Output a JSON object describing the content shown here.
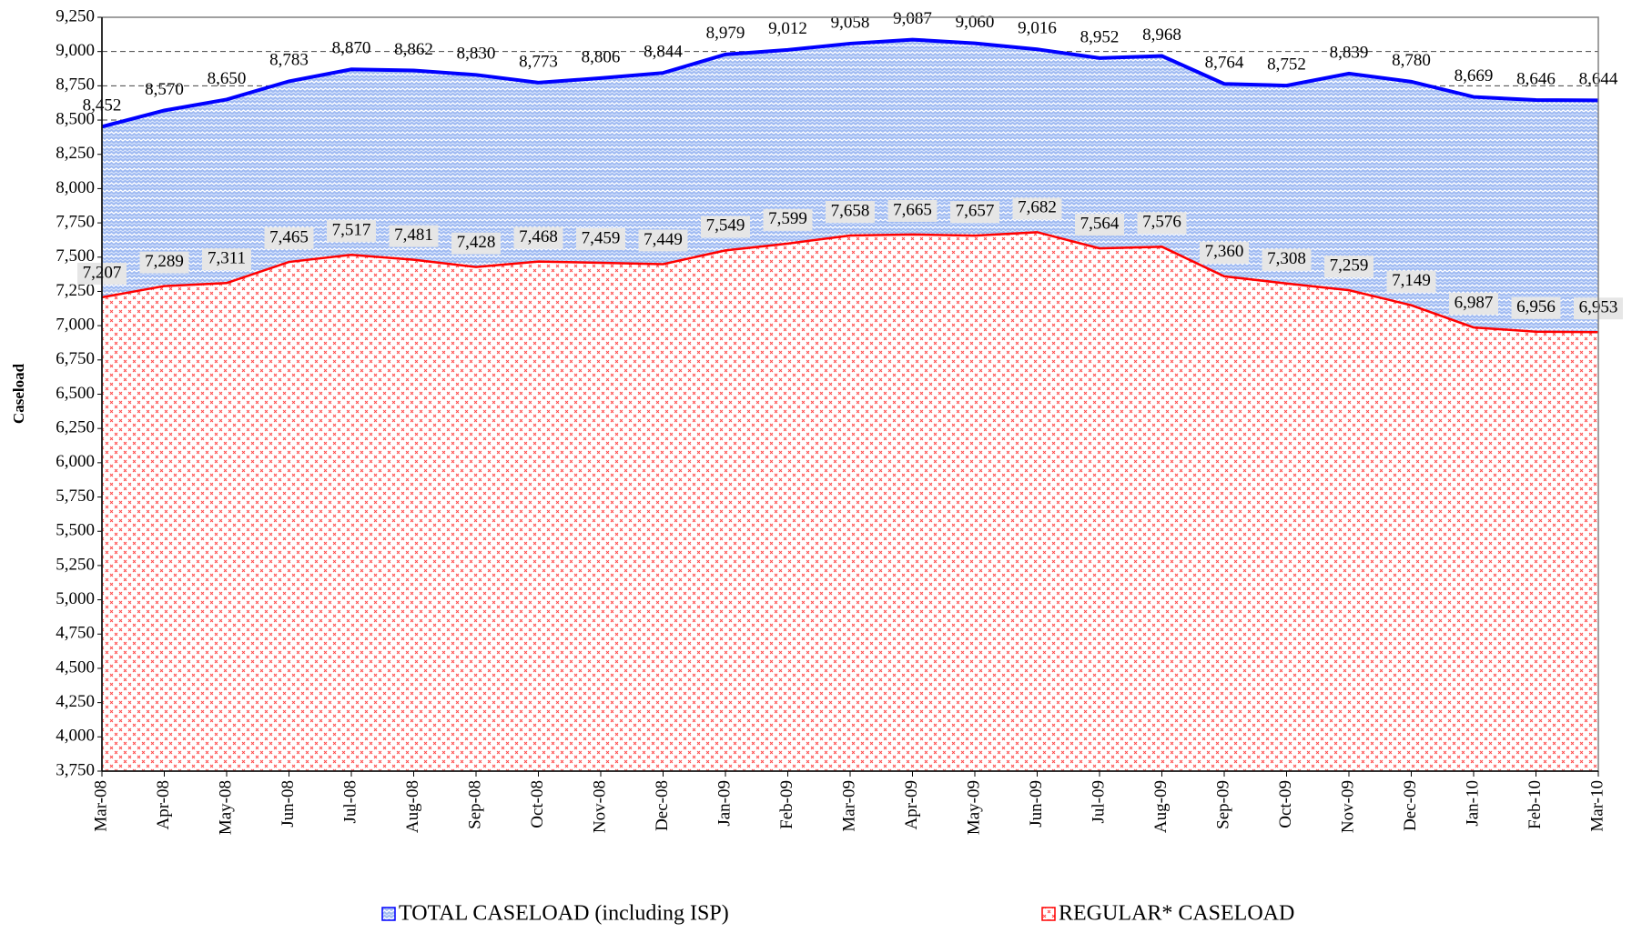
{
  "chart_data": {
    "type": "area",
    "y_label": "Caseload",
    "categories": [
      "Mar-08",
      "Apr-08",
      "May-08",
      "Jun-08",
      "Jul-08",
      "Aug-08",
      "Sep-08",
      "Oct-08",
      "Nov-08",
      "Dec-08",
      "Jan-09",
      "Feb-09",
      "Mar-09",
      "Apr-09",
      "May-09",
      "Jun-09",
      "Jul-09",
      "Aug-09",
      "Sep-09",
      "Oct-09",
      "Nov-09",
      "Dec-09",
      "Jan-10",
      "Feb-10",
      "Mar-10"
    ],
    "series": [
      {
        "name": "TOTAL CASELOAD (including ISP)",
        "color": "#0000ff",
        "values": [
          8452,
          8570,
          8650,
          8783,
          8870,
          8862,
          8830,
          8773,
          8806,
          8844,
          8979,
          9012,
          9058,
          9087,
          9060,
          9016,
          8952,
          8968,
          8764,
          8752,
          8839,
          8780,
          8669,
          8646,
          8644
        ],
        "value_labels": [
          "8,452",
          "8,570",
          "8,650",
          "8,783",
          "8,870",
          "8,862",
          "8,830",
          "8,773",
          "8,806",
          "8,844",
          "8,979",
          "9,012",
          "9,058",
          "9,087",
          "9,060",
          "9,016",
          "8,952",
          "8,968",
          "8,764",
          "8,752",
          "8,839",
          "8,780",
          "8,669",
          "8,646",
          "8,644"
        ]
      },
      {
        "name": "REGULAR* CASELOAD",
        "color": "#ff0000",
        "values": [
          7207,
          7289,
          7311,
          7465,
          7517,
          7481,
          7428,
          7468,
          7459,
          7449,
          7549,
          7599,
          7658,
          7665,
          7657,
          7682,
          7564,
          7576,
          7360,
          7308,
          7259,
          7149,
          6987,
          6956,
          6953
        ],
        "value_labels": [
          "7,207",
          "7,289",
          "7,311",
          "7,465",
          "7,517",
          "7,481",
          "7,428",
          "7,468",
          "7,459",
          "7,449",
          "7,549",
          "7,599",
          "7,658",
          "7,665",
          "7,657",
          "7,682",
          "7,564",
          "7,576",
          "7,360",
          "7,308",
          "7,259",
          "7,149",
          "6,987",
          "6,956",
          "6,953"
        ]
      }
    ],
    "ylim": [
      3750,
      9250
    ],
    "yticks": [
      {
        "value": 3750,
        "label": "3,750"
      },
      {
        "value": 4000,
        "label": "4,000"
      },
      {
        "value": 4250,
        "label": "4,250"
      },
      {
        "value": 4500,
        "label": "4,500"
      },
      {
        "value": 4750,
        "label": "4,750"
      },
      {
        "value": 5000,
        "label": "5,000"
      },
      {
        "value": 5250,
        "label": "5,250"
      },
      {
        "value": 5500,
        "label": "5,500"
      },
      {
        "value": 5750,
        "label": "5,750"
      },
      {
        "value": 6000,
        "label": "6,000"
      },
      {
        "value": 6250,
        "label": "6,250"
      },
      {
        "value": 6500,
        "label": "6,500"
      },
      {
        "value": 6750,
        "label": "6,750"
      },
      {
        "value": 7000,
        "label": "7,000"
      },
      {
        "value": 7250,
        "label": "7,250"
      },
      {
        "value": 7500,
        "label": "7,500"
      },
      {
        "value": 7750,
        "label": "7,750"
      },
      {
        "value": 8000,
        "label": "8,000"
      },
      {
        "value": 8250,
        "label": "8,250"
      },
      {
        "value": 8500,
        "label": "8,500"
      },
      {
        "value": 8750,
        "label": "8,750"
      },
      {
        "value": 9000,
        "label": "9,000"
      },
      {
        "value": 9250,
        "label": "9,250"
      }
    ],
    "grid": true
  }
}
